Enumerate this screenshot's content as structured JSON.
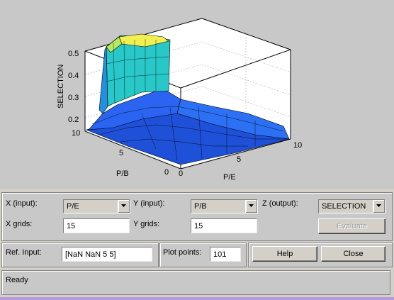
{
  "plot": {
    "z_ticks": [
      "0.5",
      "0.4",
      "0.3",
      "0.2"
    ],
    "y_ticks": [
      "10",
      "5",
      "0"
    ],
    "x_ticks": [
      "0",
      "5",
      "10"
    ],
    "zlabel": "SELECTION",
    "ylabel": "P/B",
    "xlabel": "P/E"
  },
  "controls": {
    "x_input_label": "X (input):",
    "x_input_value": "P/E",
    "y_input_label": "Y (input):",
    "y_input_value": "P/B",
    "z_output_label": "Z (output):",
    "z_output_value": "SELECTION",
    "x_grids_label": "X grids:",
    "x_grids_value": "15",
    "y_grids_label": "Y grids:",
    "y_grids_value": "15",
    "evaluate_label": "Evaluate",
    "ref_input_label": "Ref. Input:",
    "ref_input_value": "[NaN NaN 5 5]",
    "plot_points_label": "Plot points:",
    "plot_points_value": "101",
    "help_label": "Help",
    "close_label": "Close"
  },
  "status": {
    "text": "Ready"
  },
  "colors": {
    "surface_low": "#1e50d8",
    "surface_mid": "#28c8c8",
    "surface_high": "#f0f050"
  },
  "icons": {
    "dropdown": "chevron-down-icon"
  }
}
